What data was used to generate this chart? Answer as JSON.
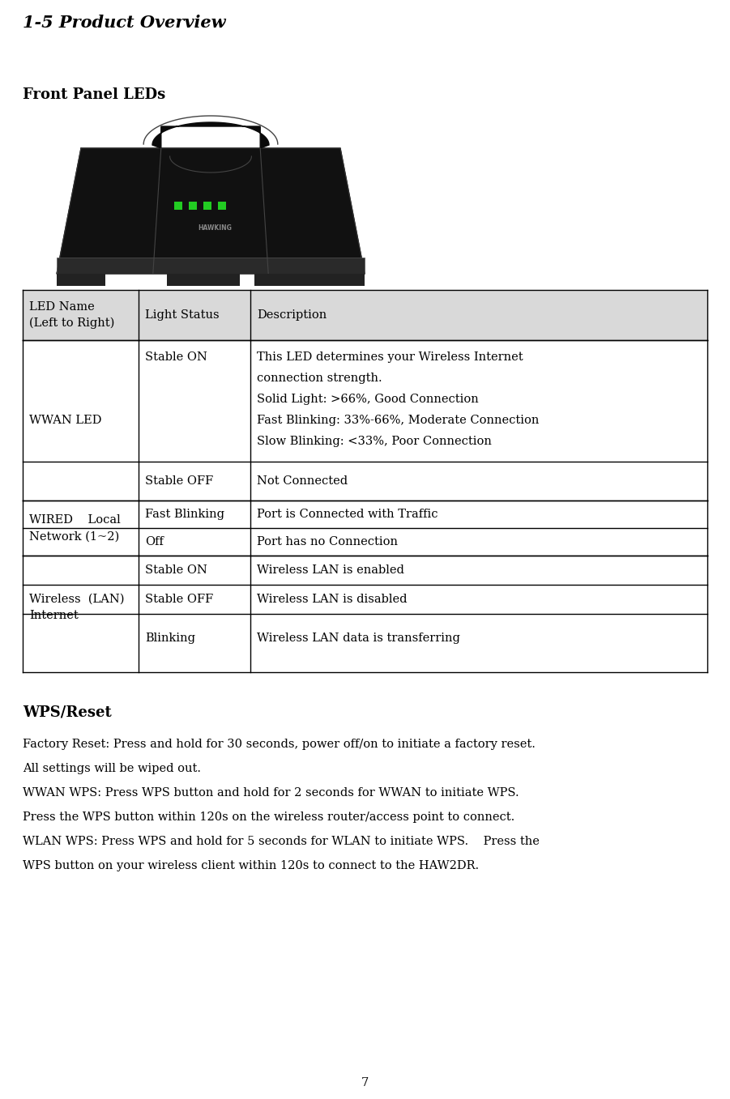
{
  "title": "1-5 Product Overview",
  "title_font": "serif",
  "title_style": "italic",
  "title_weight": "bold",
  "title_size": 15,
  "subtitle": "Front Panel LEDs",
  "subtitle_size": 13,
  "subtitle_weight": "bold",
  "bg_color": "#ffffff",
  "header_bg": "#d9d9d9",
  "table_border": "#000000",
  "text_color": "#000000",
  "font_family": "serif",
  "body_font_size": 10.5,
  "wps_section_title": "WPS/Reset",
  "wps_text": [
    "Factory Reset: Press and hold for 30 seconds, power off/on to initiate a factory reset.",
    "All settings will be wiped out.",
    "WWAN WPS: Press WPS button and hold for 2 seconds for WWAN to initiate WPS.",
    "Press the WPS button within 120s on the wireless router/access point to connect.",
    "WLAN WPS: Press WPS and hold for 5 seconds for WLAN to initiate WPS.    Press the",
    "WPS button on your wireless client within 120s to connect to the HAW2DR."
  ],
  "page_number": "7"
}
